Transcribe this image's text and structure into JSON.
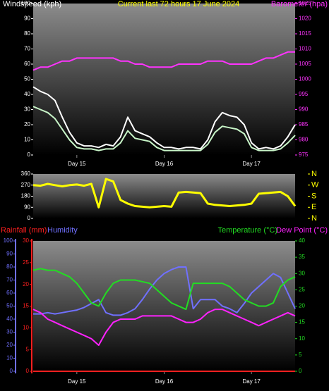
{
  "chart_data": [
    {
      "type": "line",
      "title": "Current last 72 hours 17 June 2024",
      "title_color": "#ffff00",
      "ylabel": "Windspeed (kph)",
      "ycolor": "#ffffff",
      "y2label": "Barometer (hpa)",
      "y2color": "#ff33ff",
      "categories": [
        null,
        null,
        null,
        null,
        null,
        null,
        "Day 15",
        null,
        null,
        null,
        null,
        null,
        null,
        null,
        null,
        null,
        null,
        null,
        "Day 16",
        null,
        null,
        null,
        null,
        null,
        null,
        null,
        null,
        null,
        null,
        null,
        "Day 17",
        null,
        null,
        null,
        null,
        null,
        null
      ],
      "ylim": [
        0,
        100
      ],
      "yticks": [
        0,
        10,
        20,
        30,
        40,
        50,
        60,
        70,
        80,
        90,
        100
      ],
      "y2lim": [
        975,
        1025
      ],
      "y2ticks": [
        975,
        980,
        985,
        990,
        995,
        1000,
        1005,
        1010,
        1015,
        1020,
        1025
      ],
      "series": [
        {
          "color": "#ffffff",
          "values": [
            45,
            42,
            40,
            36,
            25,
            15,
            8,
            6,
            6,
            5,
            7,
            6,
            12,
            25,
            16,
            14,
            12,
            8,
            5,
            5,
            4,
            5,
            5,
            4,
            10,
            22,
            28,
            26,
            25,
            20,
            8,
            4,
            5,
            4,
            6,
            12,
            20
          ]
        },
        {
          "color": "#c8f5c8",
          "values": [
            32,
            30,
            28,
            24,
            17,
            10,
            5,
            4,
            4,
            3,
            4,
            4,
            8,
            16,
            11,
            10,
            9,
            5,
            3,
            3,
            3,
            3,
            3,
            3,
            7,
            15,
            19,
            18,
            17,
            14,
            5,
            3,
            3,
            3,
            4,
            8,
            13
          ]
        },
        {
          "color": "#ff33ff",
          "axis": "y2",
          "values": [
            1003,
            1004,
            1004,
            1005,
            1006,
            1006,
            1007,
            1007,
            1007,
            1007,
            1007,
            1007,
            1006,
            1006,
            1005,
            1005,
            1004,
            1004,
            1004,
            1004,
            1005,
            1005,
            1005,
            1005,
            1006,
            1006,
            1006,
            1005,
            1005,
            1005,
            1005,
            1006,
            1007,
            1007,
            1008,
            1009,
            1009
          ]
        }
      ]
    },
    {
      "type": "line",
      "ycolor": "#ffffff",
      "y2color": "#ffff00",
      "ylim": [
        0,
        360
      ],
      "yticks": [
        0,
        90,
        180,
        270,
        360
      ],
      "y2lim": [
        0,
        360
      ],
      "y2ticks": [
        {
          "value": 0,
          "label": "N"
        },
        {
          "value": 90,
          "label": "E"
        },
        {
          "value": 180,
          "label": "S"
        },
        {
          "value": 270,
          "label": "W"
        },
        {
          "value": 360,
          "label": "N"
        }
      ],
      "series": [
        {
          "color": "#ffff00",
          "values": [
            270,
            265,
            280,
            270,
            260,
            270,
            275,
            265,
            280,
            90,
            320,
            300,
            150,
            120,
            100,
            95,
            90,
            95,
            100,
            95,
            210,
            215,
            210,
            205,
            120,
            110,
            105,
            100,
            105,
            110,
            120,
            200,
            205,
            210,
            215,
            180,
            100
          ]
        }
      ]
    },
    {
      "type": "line",
      "ycolor": "#7070ff",
      "y2color": "#22dd22",
      "y3color": "#ff2020",
      "categories": [
        null,
        null,
        null,
        null,
        null,
        null,
        "Day 15",
        null,
        null,
        null,
        null,
        null,
        null,
        null,
        null,
        null,
        null,
        null,
        "Day 16",
        null,
        null,
        null,
        null,
        null,
        null,
        null,
        null,
        null,
        null,
        null,
        "Day 17",
        null,
        null,
        null,
        null,
        null,
        null
      ],
      "ylim": [
        0,
        100
      ],
      "yticks": [
        0,
        10,
        20,
        30,
        40,
        50,
        60,
        70,
        80,
        90,
        100
      ],
      "y2lim": [
        0,
        40
      ],
      "y2ticks": [
        0,
        5,
        10,
        15,
        20,
        25,
        30,
        35,
        40
      ],
      "y3lim": [
        0,
        30
      ],
      "y3ticks": [
        0,
        5,
        10,
        15,
        20,
        25,
        30
      ],
      "series": [
        {
          "name": "Rainfall (mm)",
          "color": "#ff2020",
          "axis": "y3",
          "values": [
            0,
            0,
            0,
            0,
            0,
            0,
            0,
            0,
            0,
            0,
            0,
            0,
            0,
            0,
            0,
            0,
            0,
            0,
            0,
            0,
            0,
            0,
            0,
            0,
            0,
            0,
            0,
            0,
            0,
            0,
            0,
            0,
            0,
            0,
            0,
            0,
            0
          ]
        },
        {
          "name": "Humidity",
          "color": "#7070ff",
          "values": [
            44,
            44,
            45,
            44,
            45,
            46,
            47,
            49,
            52,
            55,
            45,
            43,
            43,
            45,
            48,
            55,
            63,
            70,
            75,
            78,
            80,
            80,
            48,
            55,
            55,
            55,
            50,
            48,
            45,
            52,
            60,
            65,
            70,
            75,
            72,
            60,
            48
          ]
        },
        {
          "name": "Temperature (°C)",
          "color": "#22dd22",
          "axis": "y2",
          "values": [
            31,
            31.5,
            31,
            31,
            30,
            29,
            27,
            24,
            21,
            20,
            24,
            27,
            28,
            28,
            28,
            27.5,
            27,
            25,
            23,
            21,
            20,
            19,
            27,
            27,
            27,
            27,
            27,
            26,
            24,
            22,
            21,
            20,
            20,
            21,
            26,
            28,
            29
          ]
        },
        {
          "name": "Dew Point (°C)",
          "color": "#ff22ff",
          "axis": "y2",
          "values": [
            19,
            18,
            16,
            15,
            14,
            13,
            12,
            11,
            10,
            8,
            12,
            15,
            16,
            16,
            16,
            17,
            17,
            17,
            17,
            17,
            16,
            15,
            15,
            16,
            18,
            19,
            19,
            18,
            17,
            16,
            15,
            14,
            15,
            16,
            17,
            18,
            17
          ]
        }
      ]
    }
  ]
}
